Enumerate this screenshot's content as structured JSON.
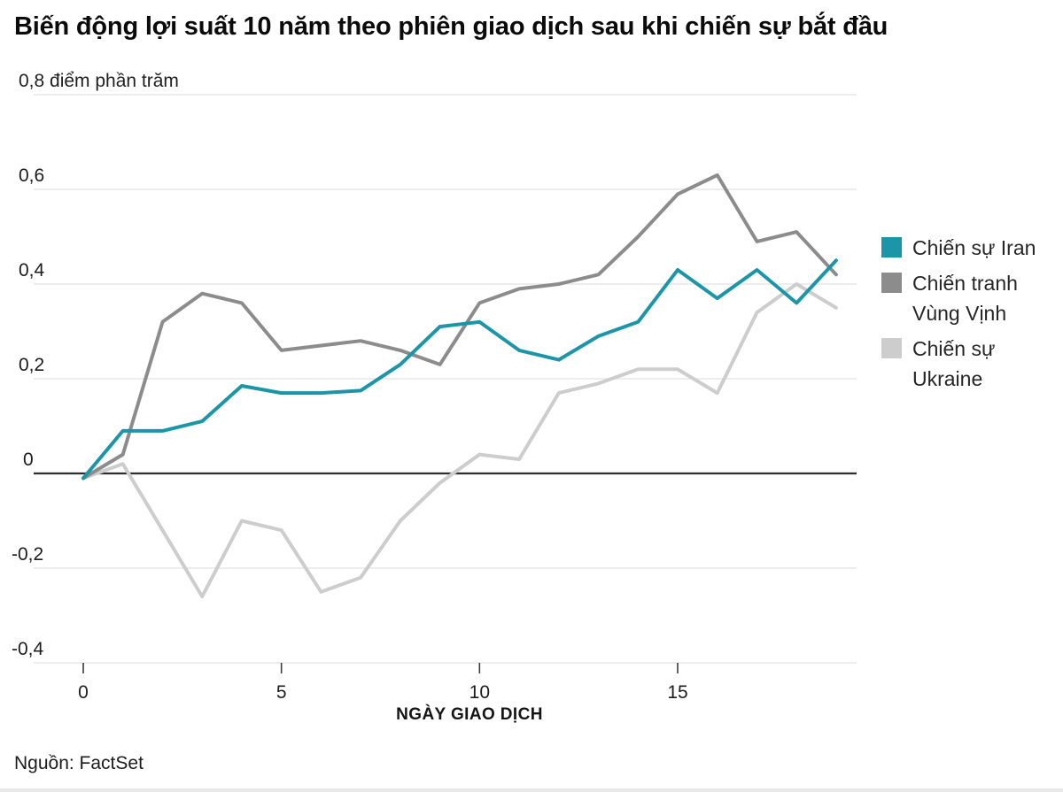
{
  "title": "Biến động lợi suất 10 năm theo phiên giao dịch sau khi chiến sự bắt đầu",
  "source": "Nguồn: FactSet",
  "style": {
    "accent_teal": "#1B96A8",
    "gray_dark": "#8C8C8C",
    "gray_light": "#CDCDCD",
    "grid_color": "#e7e7e7",
    "zero_line_color": "#2d2d2d",
    "tick_text_color": "#1c1c1c"
  },
  "chart_data": {
    "type": "line",
    "title": "Biến động lợi suất 10 năm theo phiên giao dịch sau khi chiến sự bắt đầu",
    "unit_label": "0,8 điểm phần trăm",
    "xlabel": "NGÀY GIAO DỊCH",
    "ylabel": "điểm phần trăm",
    "xlim": [
      0,
      19.5
    ],
    "ylim": [
      -0.4,
      0.8
    ],
    "grid": "horizontal",
    "legend_position": "right",
    "x": [
      0,
      1,
      2,
      3,
      4,
      5,
      6,
      7,
      8,
      9,
      10,
      11,
      12,
      13,
      14,
      15,
      16,
      17,
      18,
      19
    ],
    "x_ticks": [
      {
        "value": 0,
        "label": "0"
      },
      {
        "value": 5,
        "label": "5"
      },
      {
        "value": 10,
        "label": "10"
      },
      {
        "value": 15,
        "label": "15"
      }
    ],
    "y_ticks": [
      {
        "value": 0.8,
        "label": ""
      },
      {
        "value": 0.6,
        "label": "0,6"
      },
      {
        "value": 0.4,
        "label": "0,4"
      },
      {
        "value": 0.2,
        "label": "0,2"
      },
      {
        "value": 0,
        "label": "0"
      },
      {
        "value": -0.2,
        "label": "-0,2"
      },
      {
        "value": -0.4,
        "label": "-0,4"
      }
    ],
    "series": [
      {
        "id": "iran",
        "name": "Chiến sự Iran",
        "color": "#1B96A8",
        "values": [
          -0.01,
          0.09,
          0.09,
          0.11,
          0.185,
          0.17,
          0.17,
          0.175,
          0.23,
          0.31,
          0.32,
          0.26,
          0.24,
          0.29,
          0.32,
          0.43,
          0.37,
          0.43,
          0.36,
          0.45
        ]
      },
      {
        "id": "gulf-war",
        "name": "Chiến tranh Vùng Vịnh",
        "color": "#8C8C8C",
        "values": [
          -0.01,
          0.04,
          0.32,
          0.38,
          0.36,
          0.26,
          0.27,
          0.28,
          0.26,
          0.23,
          0.36,
          0.39,
          0.4,
          0.42,
          0.5,
          0.59,
          0.63,
          0.49,
          0.51,
          0.42
        ]
      },
      {
        "id": "ukraine",
        "name": "Chiến sự Ukraine",
        "color": "#CDCDCD",
        "values": [
          -0.01,
          0.02,
          -0.12,
          -0.26,
          -0.1,
          -0.12,
          -0.25,
          -0.22,
          -0.1,
          -0.02,
          0.04,
          0.03,
          0.17,
          0.19,
          0.22,
          0.22,
          0.17,
          0.34,
          0.4,
          0.35
        ]
      }
    ]
  }
}
